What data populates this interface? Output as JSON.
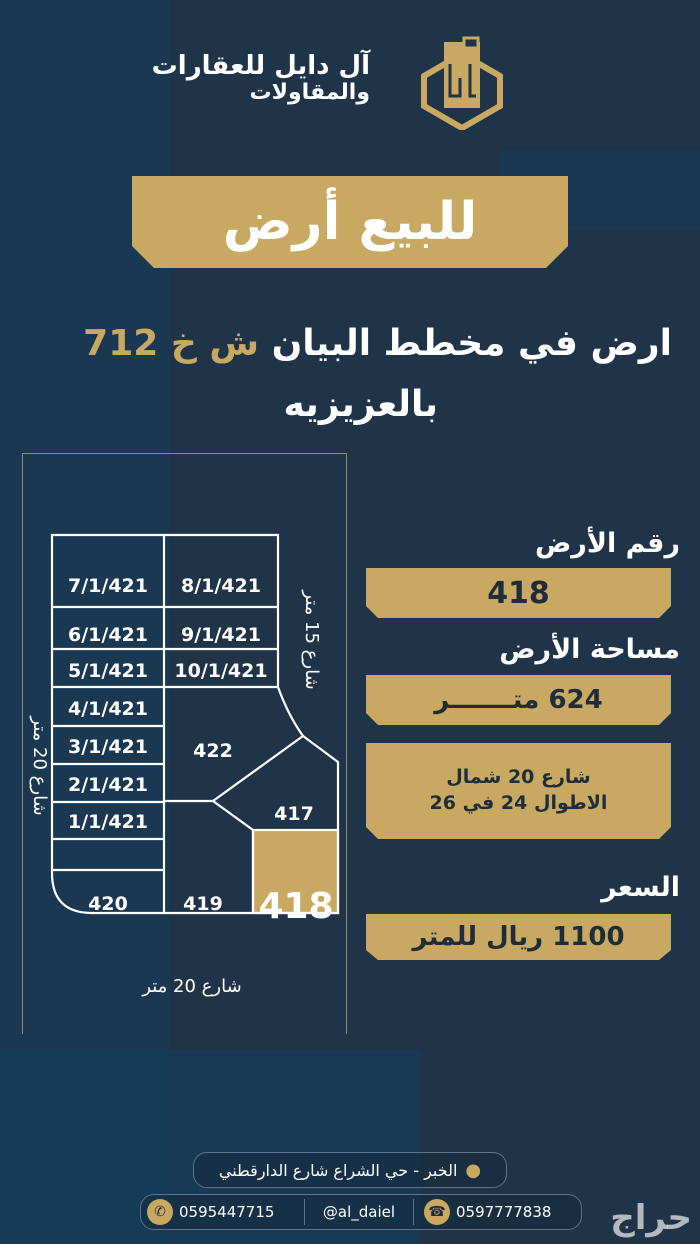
{
  "logo": {
    "line1": "آل دايل للعقارات",
    "line2": "والمقاولات"
  },
  "banner": {
    "title": "للبيع أرض"
  },
  "subtitle": {
    "main": "ارض في مخطط البيان",
    "plan": "ش خ 712",
    "line2": "بالعزيزيه"
  },
  "map": {
    "lots": {
      "l7": "7/1/421",
      "l8": "8/1/421",
      "l6": "6/1/421",
      "l9": "9/1/421",
      "l5": "5/1/421",
      "l10": "10/1/421",
      "l4": "4/1/421",
      "l3": "3/1/421",
      "l2": "2/1/421",
      "l1": "1/1/421",
      "l422": "422",
      "l417": "417",
      "l420": "420",
      "l419": "419",
      "l418": "418"
    },
    "street_left": "شارع 20 متر",
    "street_right": "شارع 15 متر",
    "street_bottom": "شارع 20 متر",
    "highlight_color": "#c9a961"
  },
  "info": {
    "lot_number_label": "رقم الأرض",
    "lot_number": "418",
    "area_label": "مساحة الأرض",
    "area": "624 متـــــــر",
    "dims_line1": "شارع 20 شمال",
    "dims_line2": "الاطوال 24 في 26",
    "price_label": "السعر",
    "price": "1100 ريال للمتر"
  },
  "footer": {
    "address": "الخبر - حي الشراع شارع الدارقطني",
    "whatsapp": "0595447715",
    "handle": "@al_daiel",
    "phone": "0597777838",
    "watermark": "حراج"
  },
  "colors": {
    "gold": "#c9a961",
    "navy": "#1f3448"
  }
}
